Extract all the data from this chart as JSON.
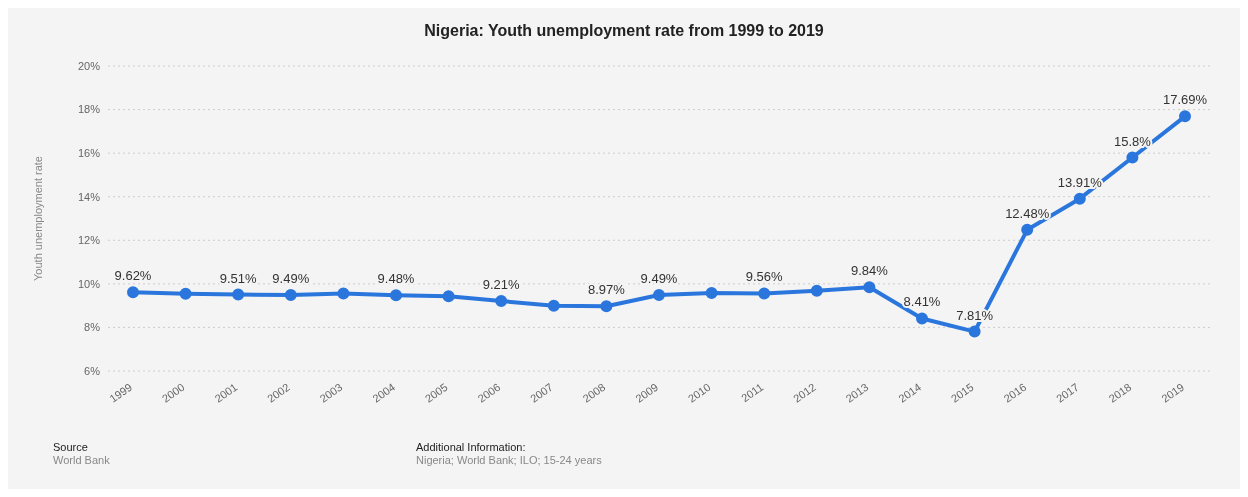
{
  "chart_data": {
    "type": "line",
    "title": "Nigeria: Youth unemployment rate from 1999 to 2019",
    "ylabel": "Youth unemployment rate",
    "categories": [
      "1999",
      "2000",
      "2001",
      "2002",
      "2003",
      "2004",
      "2005",
      "2006",
      "2007",
      "2008",
      "2009",
      "2010",
      "2011",
      "2012",
      "2013",
      "2014",
      "2015",
      "2016",
      "2017",
      "2018",
      "2019"
    ],
    "series": [
      {
        "color": "#2a76dd",
        "values": [
          9.62,
          9.55,
          9.51,
          9.49,
          9.56,
          9.48,
          9.43,
          9.21,
          9.0,
          8.97,
          9.49,
          9.58,
          9.56,
          9.68,
          9.84,
          8.41,
          7.81,
          12.48,
          13.91,
          15.8,
          17.69
        ],
        "value_labels": [
          "9.62%",
          null,
          "9.51%",
          "9.49%",
          null,
          "9.48%",
          null,
          "9.21%",
          null,
          "8.97%",
          "9.49%",
          null,
          "9.56%",
          null,
          "9.84%",
          "8.41%",
          "7.81%",
          "12.48%",
          "13.91%",
          "15.8%",
          "17.69%"
        ]
      }
    ],
    "ylim": [
      6,
      20
    ],
    "yticks": [
      {
        "value": 6,
        "label": "6%"
      },
      {
        "value": 8,
        "label": "8%"
      },
      {
        "value": 10,
        "label": "10%"
      },
      {
        "value": 12,
        "label": "12%"
      },
      {
        "value": 14,
        "label": "14%"
      },
      {
        "value": 16,
        "label": "16%"
      },
      {
        "value": 18,
        "label": "18%"
      },
      {
        "value": 20,
        "label": "20%"
      }
    ],
    "grid": "y",
    "marker": "circle",
    "line_style": "solid",
    "legend": false,
    "annotations": [
      "Source",
      "World Bank",
      "Additional Information:",
      "Nigeria; World Bank; ILO; 15-24 years"
    ]
  }
}
